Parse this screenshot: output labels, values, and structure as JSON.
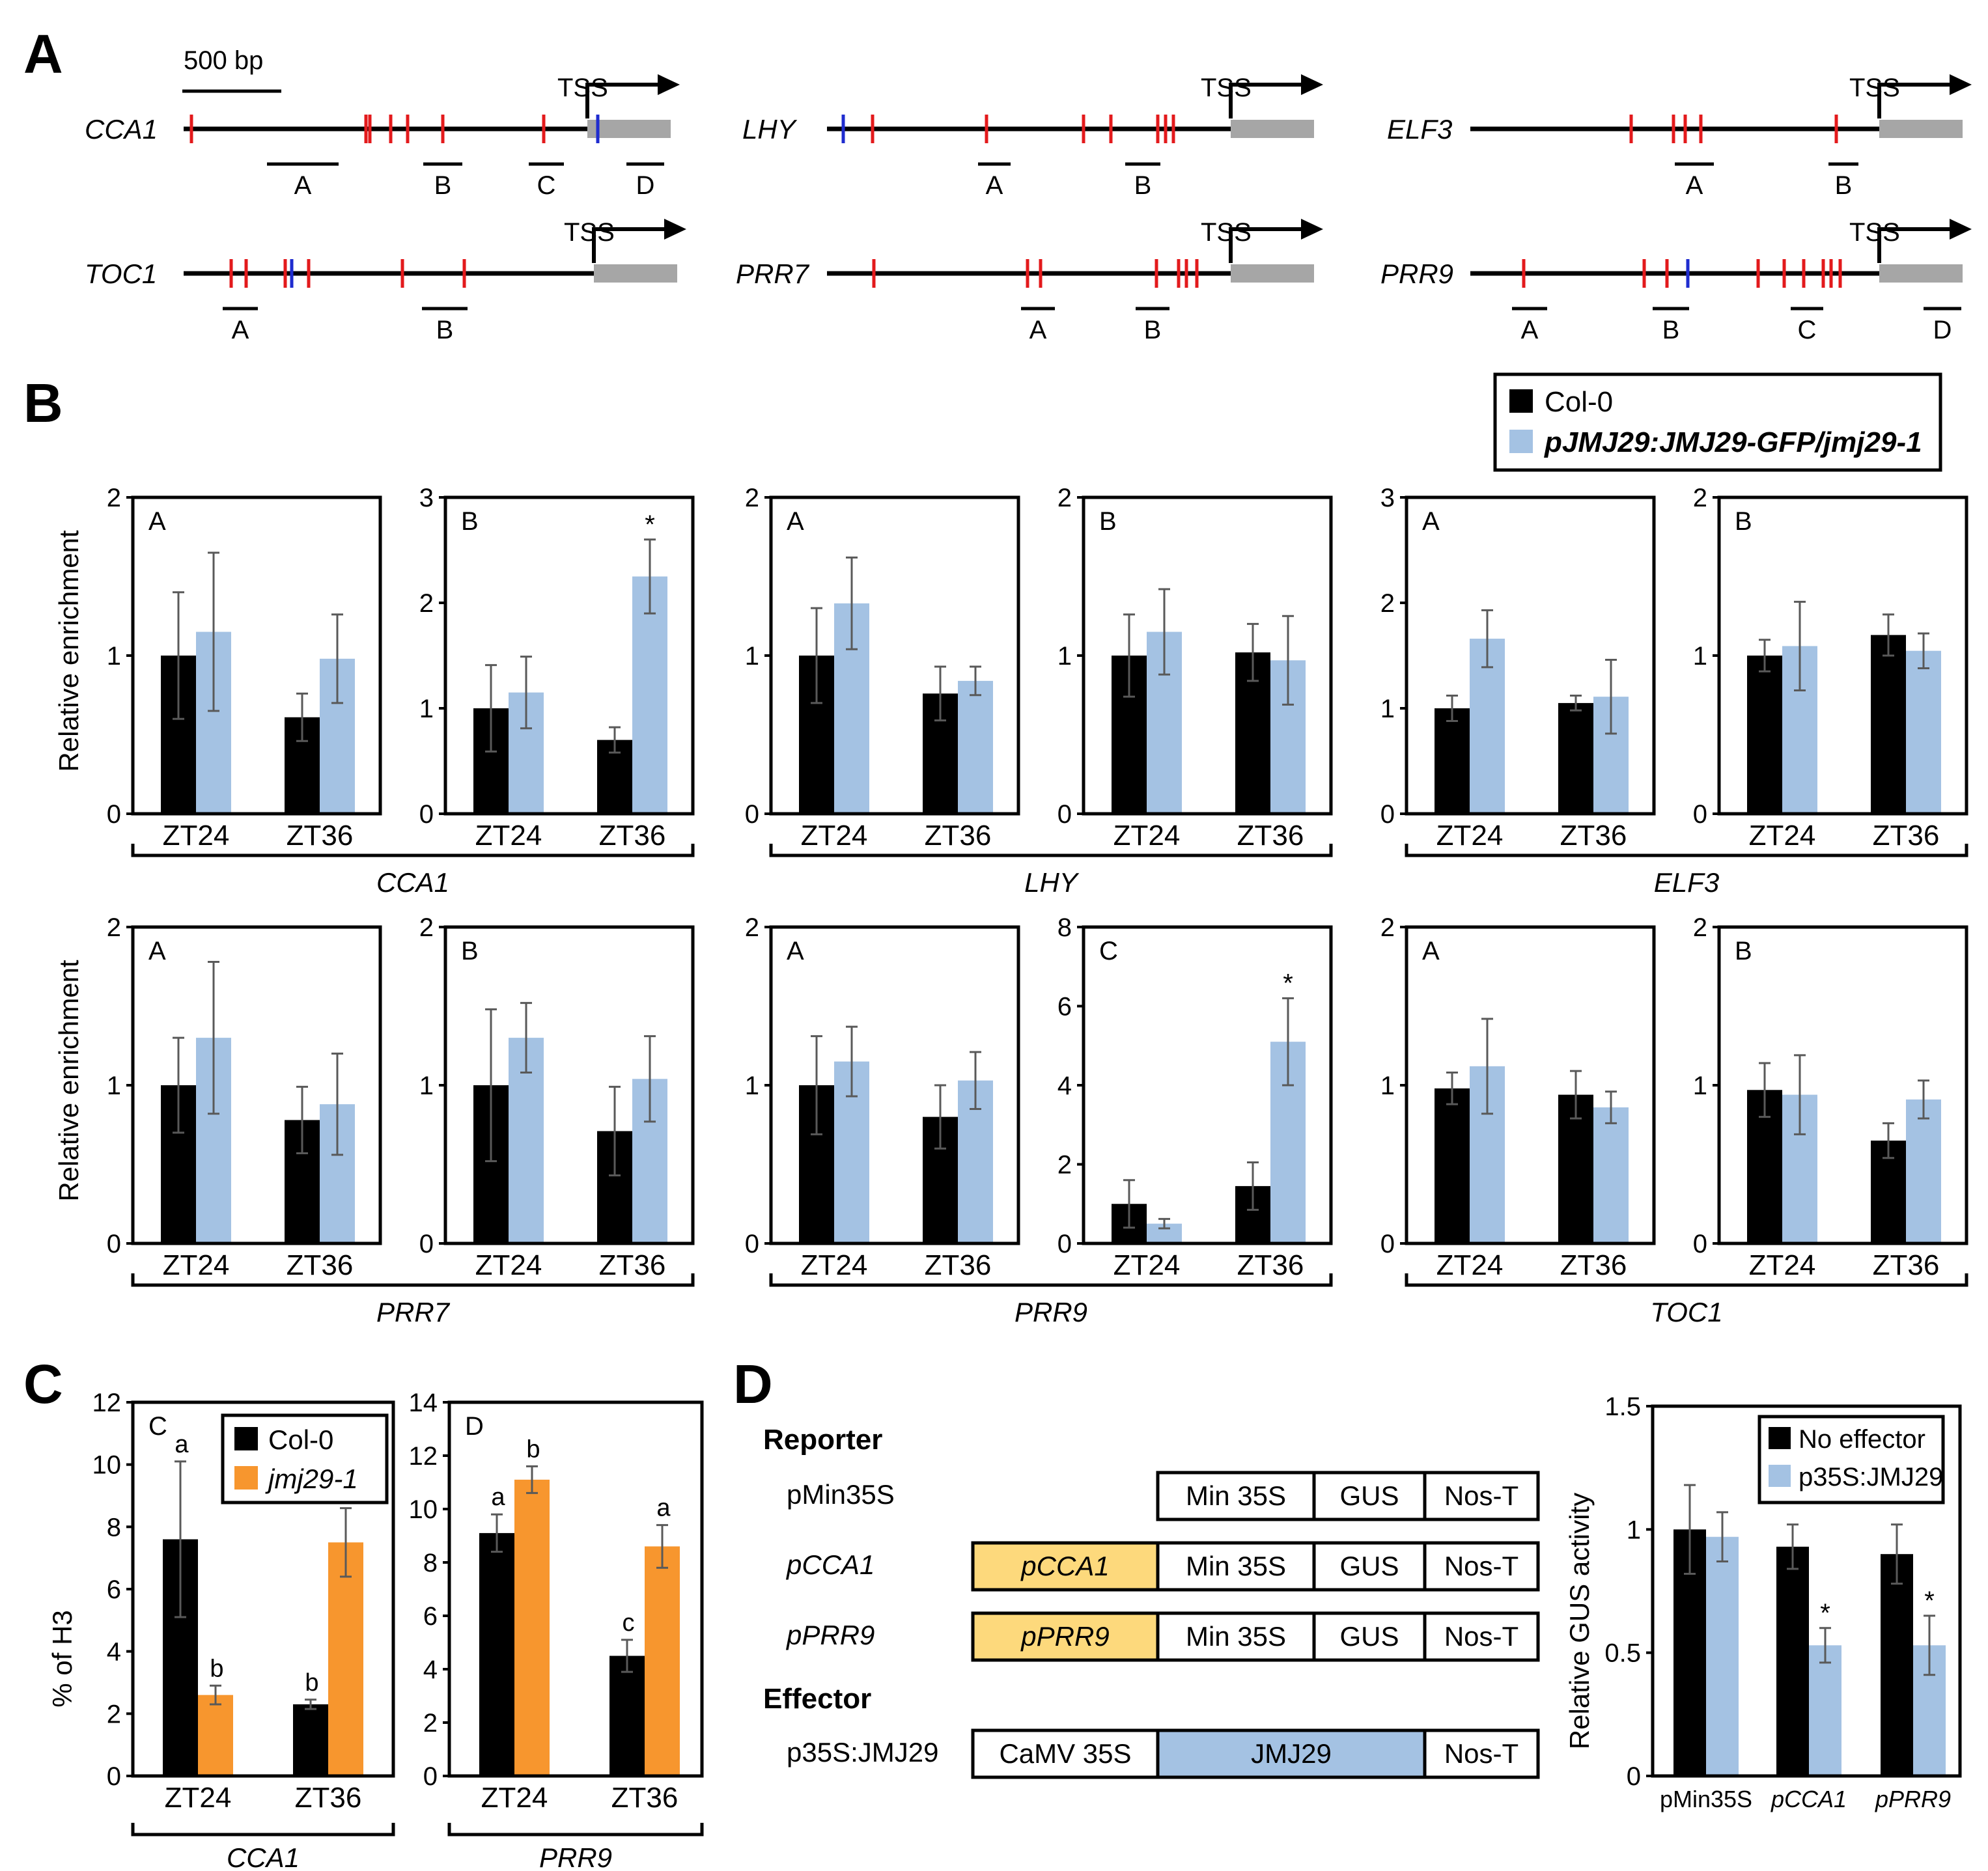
{
  "panel_letters": [
    "A",
    "B",
    "C",
    "D"
  ],
  "panel_a": {
    "scale_bar_label": "500 bp",
    "tss_label": "TSS",
    "genes": [
      {
        "name": "CCA1",
        "regions": [
          "A",
          "B",
          "C",
          "D"
        ]
      },
      {
        "name": "LHY",
        "regions": [
          "A",
          "B"
        ]
      },
      {
        "name": "ELF3",
        "regions": [
          "A",
          "B"
        ]
      },
      {
        "name": "TOC1",
        "regions": [
          "A",
          "B"
        ]
      },
      {
        "name": "PRR7",
        "regions": [
          "A",
          "B"
        ]
      },
      {
        "name": "PRR9",
        "regions": [
          "A",
          "B",
          "C",
          "D"
        ]
      }
    ]
  },
  "panel_d": {
    "reporter_heading": "Reporter",
    "effector_heading": "Effector",
    "rows": [
      {
        "label": "pMin35S",
        "promoter": "",
        "cells": [
          "Min 35S",
          "GUS",
          "Nos-T"
        ]
      },
      {
        "label": "pCCA1",
        "promoter": "pCCA1",
        "cells": [
          "Min 35S",
          "GUS",
          "Nos-T"
        ]
      },
      {
        "label": "pPRR9",
        "promoter": "pPRR9",
        "cells": [
          "Min 35S",
          "GUS",
          "Nos-T"
        ]
      }
    ],
    "effector": {
      "label": "p35S:JMJ29",
      "cells": [
        "CaMV 35S",
        "JMJ29",
        "Nos-T"
      ]
    }
  },
  "colors": {
    "black": "#000000",
    "blue": "#a4c2e3",
    "orange": "#f7962e",
    "yellow": "#fdd97c",
    "red": "#e31a1c",
    "motif_blue": "#1f2ccf",
    "gray": "#a6a6a6",
    "errbar": "#595959"
  },
  "chart_data": [
    {
      "type": "bar",
      "panel": "B",
      "legend": [
        "Col-0",
        "pJMJ29:JMJ29-GFP/jmj29-1"
      ],
      "ylabel": "Relative enrichment",
      "categories": [
        "ZT24",
        "ZT36"
      ],
      "subplots": [
        {
          "gene": "CCA1",
          "region": "A",
          "ylim": [
            0,
            2
          ],
          "yticks": [
            0,
            1,
            2
          ],
          "series": [
            {
              "name": "Col-0",
              "values": [
                1.0,
                0.61
              ],
              "err": [
                0.4,
                0.15
              ]
            },
            {
              "name": "pJMJ29:JMJ29-GFP/jmj29-1",
              "values": [
                1.15,
                0.98
              ],
              "err": [
                0.5,
                0.28
              ]
            }
          ],
          "sig": [
            null,
            null
          ]
        },
        {
          "gene": "CCA1",
          "region": "B",
          "ylim": [
            0,
            3
          ],
          "yticks": [
            0,
            1,
            2,
            3
          ],
          "series": [
            {
              "name": "Col-0",
              "values": [
                1.0,
                0.7
              ],
              "err": [
                0.41,
                0.12
              ]
            },
            {
              "name": "pJMJ29:JMJ29-GFP/jmj29-1",
              "values": [
                1.15,
                2.25
              ],
              "err": [
                0.34,
                0.35
              ]
            }
          ],
          "sig": [
            null,
            "*"
          ]
        },
        {
          "gene": "LHY",
          "region": "A",
          "ylim": [
            0,
            2
          ],
          "yticks": [
            0,
            1,
            2
          ],
          "series": [
            {
              "name": "Col-0",
              "values": [
                1.0,
                0.76
              ],
              "err": [
                0.3,
                0.17
              ]
            },
            {
              "name": "pJMJ29:JMJ29-GFP/jmj29-1",
              "values": [
                1.33,
                0.84
              ],
              "err": [
                0.29,
                0.09
              ]
            }
          ],
          "sig": [
            null,
            null
          ]
        },
        {
          "gene": "LHY",
          "region": "B",
          "ylim": [
            0,
            2
          ],
          "yticks": [
            0,
            1,
            2
          ],
          "series": [
            {
              "name": "Col-0",
              "values": [
                1.0,
                1.02
              ],
              "err": [
                0.26,
                0.18
              ]
            },
            {
              "name": "pJMJ29:JMJ29-GFP/jmj29-1",
              "values": [
                1.15,
                0.97
              ],
              "err": [
                0.27,
                0.28
              ]
            }
          ],
          "sig": [
            null,
            null
          ]
        },
        {
          "gene": "ELF3",
          "region": "A",
          "ylim": [
            0,
            3
          ],
          "yticks": [
            0,
            1,
            2,
            3
          ],
          "series": [
            {
              "name": "Col-0",
              "values": [
                1.0,
                1.05
              ],
              "err": [
                0.12,
                0.07
              ]
            },
            {
              "name": "pJMJ29:JMJ29-GFP/jmj29-1",
              "values": [
                1.66,
                1.11
              ],
              "err": [
                0.27,
                0.35
              ]
            }
          ],
          "sig": [
            null,
            null
          ]
        },
        {
          "gene": "ELF3",
          "region": "B",
          "ylim": [
            0,
            2
          ],
          "yticks": [
            0,
            1,
            2
          ],
          "series": [
            {
              "name": "Col-0",
              "values": [
                1.0,
                1.13
              ],
              "err": [
                0.1,
                0.13
              ]
            },
            {
              "name": "pJMJ29:JMJ29-GFP/jmj29-1",
              "values": [
                1.06,
                1.03
              ],
              "err": [
                0.28,
                0.11
              ]
            }
          ],
          "sig": [
            null,
            null
          ]
        },
        {
          "gene": "PRR7",
          "region": "A",
          "ylim": [
            0,
            2
          ],
          "yticks": [
            0,
            1,
            2
          ],
          "series": [
            {
              "name": "Col-0",
              "values": [
                1.0,
                0.78
              ],
              "err": [
                0.3,
                0.21
              ]
            },
            {
              "name": "pJMJ29:JMJ29-GFP/jmj29-1",
              "values": [
                1.3,
                0.88
              ],
              "err": [
                0.48,
                0.32
              ]
            }
          ],
          "sig": [
            null,
            null
          ]
        },
        {
          "gene": "PRR7",
          "region": "B",
          "ylim": [
            0,
            2
          ],
          "yticks": [
            0,
            1,
            2
          ],
          "series": [
            {
              "name": "Col-0",
              "values": [
                1.0,
                0.71
              ],
              "err": [
                0.48,
                0.28
              ]
            },
            {
              "name": "pJMJ29:JMJ29-GFP/jmj29-1",
              "values": [
                1.3,
                1.04
              ],
              "err": [
                0.22,
                0.27
              ]
            }
          ],
          "sig": [
            null,
            null
          ]
        },
        {
          "gene": "PRR9",
          "region": "A",
          "ylim": [
            0,
            2
          ],
          "yticks": [
            0,
            1,
            2
          ],
          "series": [
            {
              "name": "Col-0",
              "values": [
                1.0,
                0.8
              ],
              "err": [
                0.31,
                0.2
              ]
            },
            {
              "name": "pJMJ29:JMJ29-GFP/jmj29-1",
              "values": [
                1.15,
                1.03
              ],
              "err": [
                0.22,
                0.18
              ]
            }
          ],
          "sig": [
            null,
            null
          ]
        },
        {
          "gene": "PRR9",
          "region": "C",
          "ylim": [
            0,
            8
          ],
          "yticks": [
            0,
            2,
            4,
            6,
            8
          ],
          "series": [
            {
              "name": "Col-0",
              "values": [
                1.0,
                1.45
              ],
              "err": [
                0.6,
                0.6
              ]
            },
            {
              "name": "pJMJ29:JMJ29-GFP/jmj29-1",
              "values": [
                0.5,
                5.1
              ],
              "err": [
                0.12,
                1.1
              ]
            }
          ],
          "sig": [
            null,
            "*"
          ]
        },
        {
          "gene": "TOC1",
          "region": "A",
          "ylim": [
            0,
            2
          ],
          "yticks": [
            0,
            1,
            2
          ],
          "series": [
            {
              "name": "Col-0",
              "values": [
                0.98,
                0.94
              ],
              "err": [
                0.1,
                0.15
              ]
            },
            {
              "name": "pJMJ29:JMJ29-GFP/jmj29-1",
              "values": [
                1.12,
                0.86
              ],
              "err": [
                0.3,
                0.1
              ]
            }
          ],
          "sig": [
            null,
            null
          ]
        },
        {
          "gene": "TOC1",
          "region": "B",
          "ylim": [
            0,
            2
          ],
          "yticks": [
            0,
            1,
            2
          ],
          "series": [
            {
              "name": "Col-0",
              "values": [
                0.97,
                0.65
              ],
              "err": [
                0.17,
                0.11
              ]
            },
            {
              "name": "pJMJ29:JMJ29-GFP/jmj29-1",
              "values": [
                0.94,
                0.91
              ],
              "err": [
                0.25,
                0.12
              ]
            }
          ],
          "sig": [
            null,
            null
          ]
        }
      ]
    },
    {
      "type": "bar",
      "panel": "C",
      "legend": [
        "Col-0",
        "jmj29-1"
      ],
      "ylabel": "% of H3",
      "categories": [
        "ZT24",
        "ZT36"
      ],
      "subplots": [
        {
          "gene": "CCA1",
          "region": "C",
          "ylim": [
            0,
            12
          ],
          "yticks": [
            0,
            2,
            4,
            6,
            8,
            10,
            12
          ],
          "series": [
            {
              "name": "Col-0",
              "values": [
                7.6,
                2.3
              ],
              "err": [
                2.5,
                0.15
              ]
            },
            {
              "name": "jmj29-1",
              "values": [
                2.6,
                7.5
              ],
              "err": [
                0.3,
                1.1
              ]
            }
          ],
          "letters": [
            [
              "a",
              "b"
            ],
            [
              "b",
              "a"
            ]
          ]
        },
        {
          "gene": "PRR9",
          "region": "D",
          "ylim": [
            0,
            14
          ],
          "yticks": [
            0,
            2,
            4,
            6,
            8,
            10,
            12,
            14
          ],
          "series": [
            {
              "name": "Col-0",
              "values": [
                9.1,
                4.5
              ],
              "err": [
                0.7,
                0.6
              ]
            },
            {
              "name": "jmj29-1",
              "values": [
                11.1,
                8.6
              ],
              "err": [
                0.5,
                0.8
              ]
            }
          ],
          "letters": [
            [
              "a",
              "c"
            ],
            [
              "b",
              "a"
            ]
          ]
        }
      ]
    },
    {
      "type": "bar",
      "panel": "D",
      "legend": [
        "No effector",
        "p35S:JMJ29"
      ],
      "ylabel": "Relative GUS activity",
      "categories": [
        "pMin35S",
        "pCCA1",
        "pPRR9"
      ],
      "ylim": [
        0,
        1.5
      ],
      "yticks": [
        0,
        0.5,
        1,
        1.5
      ],
      "ytick_labels": [
        "0",
        "0.5",
        "1",
        "1.5"
      ],
      "series": [
        {
          "name": "No effector",
          "values": [
            1.0,
            0.93,
            0.9
          ],
          "err": [
            0.18,
            0.09,
            0.12
          ]
        },
        {
          "name": "p35S:JMJ29",
          "values": [
            0.97,
            0.53,
            0.53
          ],
          "err": [
            0.1,
            0.07,
            0.12
          ]
        }
      ],
      "sig": [
        null,
        "*",
        "*"
      ]
    }
  ]
}
